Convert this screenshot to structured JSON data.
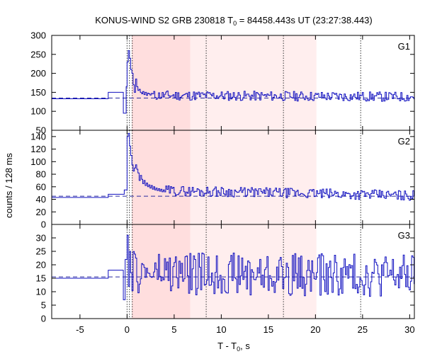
{
  "chart_data": {
    "type": "line",
    "title": "KONUS-WIND S2 GRB 230818 T",
    "title_sub": "0",
    "title_rest": " = 84458.443s UT (23:27:38.443)",
    "xlabel": "T - T",
    "xlabel_sub": "0",
    "xlabel_rest": ", s",
    "ylabel": "counts / 128 ms",
    "xlim": [
      -8,
      30.5
    ],
    "xticks": [
      -5,
      0,
      5,
      10,
      15,
      20,
      25,
      30
    ],
    "xtick_labels": [
      "-5",
      "0",
      "5",
      "10",
      "15",
      "20",
      "25",
      "30"
    ],
    "shaded_intervals": [
      {
        "name": "pulse-interval",
        "x0": 0.5,
        "x1": 6.7,
        "color": "#ffdede"
      },
      {
        "name": "spectrum-interval",
        "x0": 6.7,
        "x1": 20.1,
        "color": "#ffeeee"
      }
    ],
    "vertical_markers": [
      0.0,
      0.25,
      0.55,
      8.4,
      16.6,
      24.8
    ],
    "colors": {
      "series": "#1010c0",
      "background_line": "#2a2aa0",
      "marker": "#333333"
    },
    "panels": [
      {
        "name": "G1",
        "label": "G1",
        "ylim": [
          50,
          300
        ],
        "yticks": [
          50,
          100,
          150,
          200,
          250,
          300
        ],
        "ytick_labels": [
          "50",
          "100",
          "150",
          "200",
          "250",
          "300"
        ],
        "background_level": 135,
        "pre_burst": [
          [
            -8,
            133
          ],
          [
            -2.0,
            133
          ],
          [
            -2.0,
            150
          ],
          [
            -0.4,
            150
          ],
          [
            -0.4,
            95
          ],
          [
            -0.1,
            95
          ],
          [
            -0.1,
            165
          ]
        ],
        "peak_profile": [
          [
            0.0,
            230
          ],
          [
            0.13,
            260
          ],
          [
            0.26,
            240
          ],
          [
            0.38,
            210
          ],
          [
            0.51,
            200
          ],
          [
            0.64,
            170
          ],
          [
            0.77,
            150
          ],
          [
            0.9,
            185
          ],
          [
            1.02,
            165
          ],
          [
            1.15,
            155
          ],
          [
            1.28,
            158
          ],
          [
            1.41,
            150
          ],
          [
            1.54,
            146
          ],
          [
            1.66,
            152
          ],
          [
            1.79,
            144
          ],
          [
            1.92,
            150
          ],
          [
            2.05,
            142
          ],
          [
            2.18,
            148
          ],
          [
            2.3,
            146
          ],
          [
            2.43,
            143
          ],
          [
            2.56,
            147
          ]
        ],
        "noise_start": 2.69,
        "noise_end": 30.5,
        "noise_base": 142,
        "noise_decay_to": 138,
        "noise_amplitude": 13,
        "noise_seed": 11
      },
      {
        "name": "G2",
        "label": "G2",
        "ylim": [
          0,
          150
        ],
        "yticks": [
          0,
          20,
          40,
          60,
          80,
          100,
          120,
          140
        ],
        "ytick_labels": [
          "0",
          "20",
          "40",
          "60",
          "80",
          "100",
          "120",
          "140"
        ],
        "background_level": 45,
        "pre_burst": [
          [
            -8,
            43
          ],
          [
            -2.0,
            43
          ],
          [
            -2.0,
            48
          ],
          [
            -0.3,
            48
          ],
          [
            -0.3,
            55
          ]
        ],
        "peak_profile": [
          [
            0.0,
            140
          ],
          [
            0.13,
            145
          ],
          [
            0.26,
            125
          ],
          [
            0.38,
            110
          ],
          [
            0.51,
            95
          ],
          [
            0.64,
            85
          ],
          [
            0.77,
            90
          ],
          [
            0.9,
            95
          ],
          [
            1.02,
            88
          ],
          [
            1.15,
            82
          ],
          [
            1.28,
            70
          ],
          [
            1.41,
            78
          ],
          [
            1.54,
            72
          ],
          [
            1.66,
            65
          ],
          [
            1.79,
            70
          ],
          [
            1.92,
            62
          ],
          [
            2.05,
            66
          ],
          [
            2.18,
            60
          ],
          [
            2.3,
            63
          ],
          [
            2.43,
            58
          ],
          [
            2.56,
            62
          ],
          [
            2.69,
            56
          ],
          [
            2.82,
            60
          ],
          [
            2.94,
            55
          ],
          [
            3.07,
            58
          ],
          [
            3.2,
            54
          ],
          [
            3.33,
            57
          ],
          [
            3.46,
            53
          ],
          [
            3.58,
            56
          ],
          [
            3.71,
            52
          ],
          [
            3.84,
            55
          ]
        ],
        "noise_start": 3.97,
        "noise_end": 30.5,
        "noise_base": 54,
        "noise_decay_to": 46,
        "noise_amplitude": 8,
        "noise_seed": 29
      },
      {
        "name": "G3",
        "label": "G3",
        "ylim": [
          0,
          35
        ],
        "yticks": [
          0,
          5,
          10,
          15,
          20,
          25,
          30
        ],
        "ytick_labels": [
          "0",
          "5",
          "10",
          "15",
          "20",
          "25",
          "30"
        ],
        "background_level": 15.5,
        "pre_burst": [
          [
            -8,
            15
          ],
          [
            -2.0,
            15
          ],
          [
            -2.0,
            18
          ],
          [
            -0.4,
            18
          ],
          [
            -0.4,
            7
          ],
          [
            -0.2,
            7
          ],
          [
            -0.2,
            22
          ]
        ],
        "peak_profile": [
          [
            0.0,
            31
          ],
          [
            0.13,
            12
          ],
          [
            0.26,
            25
          ],
          [
            0.38,
            17
          ]
        ],
        "noise_start": 0.51,
        "noise_end": 30.5,
        "noise_base": 17,
        "noise_decay_to": 16,
        "noise_amplitude": 8,
        "noise_seed": 47
      }
    ]
  }
}
